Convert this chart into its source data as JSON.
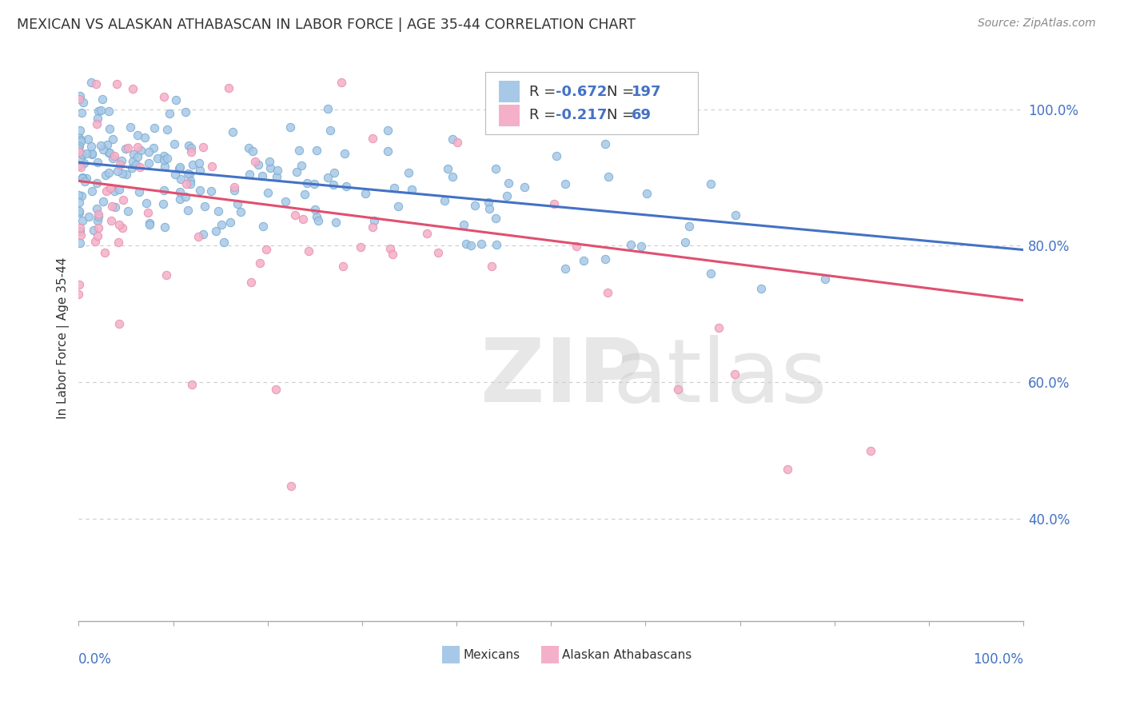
{
  "title": "MEXICAN VS ALASKAN ATHABASCAN IN LABOR FORCE | AGE 35-44 CORRELATION CHART",
  "source": "Source: ZipAtlas.com",
  "ylabel": "In Labor Force | Age 35-44",
  "ytick_labels": [
    "40.0%",
    "60.0%",
    "80.0%",
    "100.0%"
  ],
  "ytick_values": [
    0.4,
    0.6,
    0.8,
    1.0
  ],
  "mexicans_R": -0.672,
  "mexicans_N": 197,
  "mexicans_color": "#a8c8e8",
  "mexicans_edge_color": "#7aaed0",
  "mexicans_line_color": "#4472c4",
  "athabascan_R": -0.217,
  "athabascan_N": 69,
  "athabascan_color": "#f4b0c8",
  "athabascan_edge_color": "#e890b0",
  "athabascan_line_color": "#e05070",
  "label_color": "#4472c4",
  "text_color": "#333333",
  "watermark_zip_color": "#d8d8d8",
  "watermark_atlas_color": "#c8c8c8",
  "background_color": "#ffffff",
  "grid_color": "#cccccc",
  "xlim": [
    0.0,
    1.0
  ],
  "ylim": [
    0.25,
    1.08
  ],
  "mexicans_intercept": 0.922,
  "mexicans_slope": -0.128,
  "athabascan_intercept": 0.895,
  "athabascan_slope": -0.175
}
